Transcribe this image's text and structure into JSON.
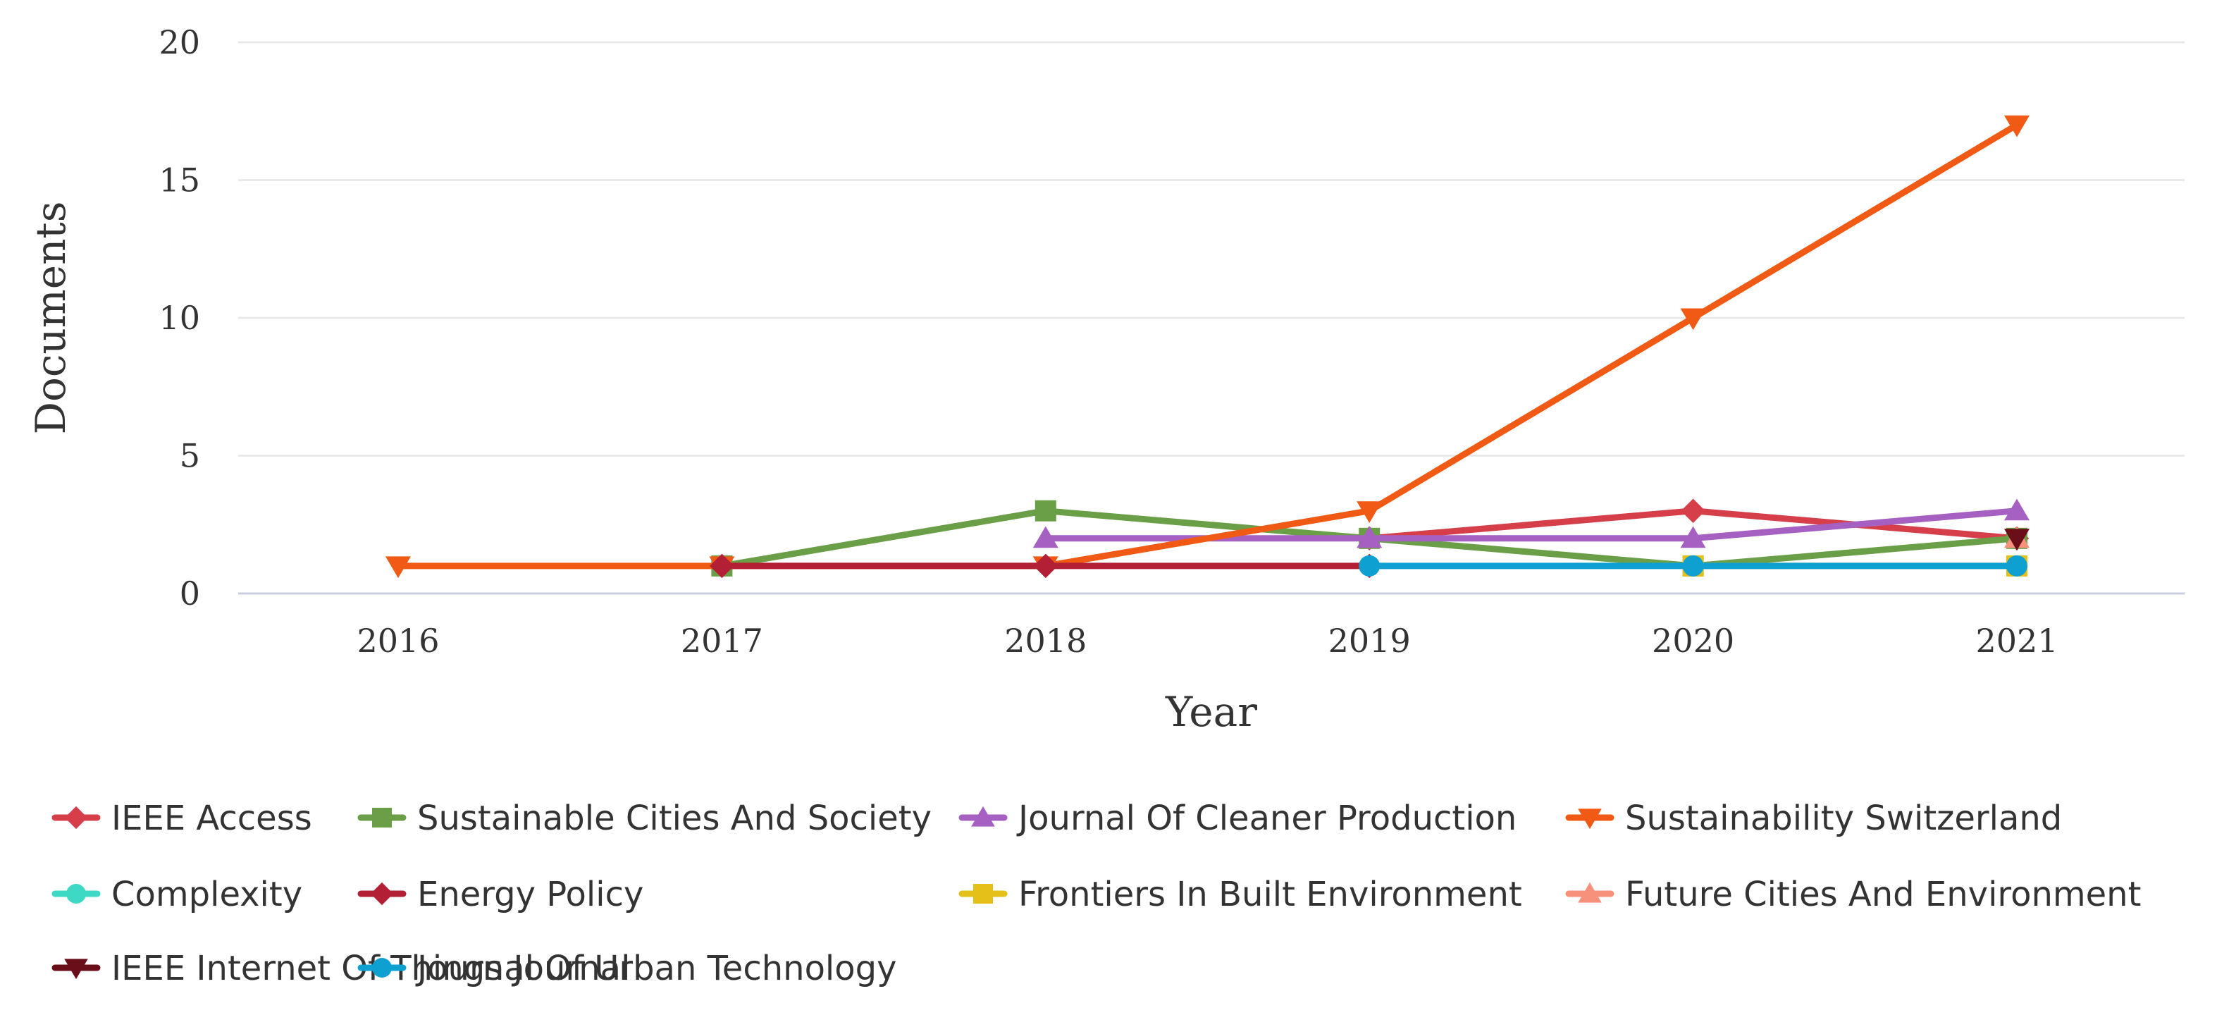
{
  "chart_data": {
    "type": "line",
    "title": "",
    "xlabel": "Year",
    "ylabel": "Documents",
    "x": [
      "2016",
      "2017",
      "2018",
      "2019",
      "2020",
      "2021"
    ],
    "ylim": [
      0,
      20
    ],
    "yticks": [
      "0",
      "5",
      "10",
      "15",
      "20"
    ],
    "grid": "horizontal",
    "legend_position": "bottom",
    "series": [
      {
        "name": "IEEE Access",
        "color": "#d63f4a",
        "marker": "diamond",
        "values": [
          null,
          null,
          null,
          2,
          3,
          2
        ]
      },
      {
        "name": "Sustainable Cities And Society",
        "color": "#6a9f48",
        "marker": "square",
        "values": [
          null,
          1,
          3,
          2,
          1,
          2
        ]
      },
      {
        "name": "Journal Of Cleaner Production",
        "color": "#a660c2",
        "marker": "triangle-up",
        "values": [
          null,
          null,
          2,
          2,
          2,
          3
        ]
      },
      {
        "name": "Sustainability Switzerland",
        "color": "#f05a14",
        "marker": "triangle-down",
        "values": [
          1,
          1,
          1,
          3,
          10,
          17
        ]
      },
      {
        "name": "Complexity",
        "color": "#3dd9c4",
        "marker": "circle",
        "values": [
          null,
          null,
          null,
          null,
          null,
          null
        ]
      },
      {
        "name": "Energy Policy",
        "color": "#b31f34",
        "marker": "diamond",
        "values": [
          null,
          1,
          1,
          1,
          null,
          null
        ]
      },
      {
        "name": "Frontiers In Built Environment",
        "color": "#e5c018",
        "marker": "square",
        "values": [
          null,
          null,
          null,
          null,
          1,
          1
        ]
      },
      {
        "name": "Future Cities And Environment",
        "color": "#f7917c",
        "marker": "triangle-up",
        "values": [
          null,
          null,
          null,
          null,
          null,
          2
        ]
      },
      {
        "name": "IEEE Internet Of Things Journal",
        "color": "#6a0f1a",
        "marker": "triangle-down",
        "values": [
          null,
          null,
          null,
          null,
          null,
          2
        ]
      },
      {
        "name": "Journal Of Urban Technology",
        "color": "#0fa0d2",
        "marker": "circle",
        "values": [
          null,
          null,
          null,
          1,
          1,
          1
        ]
      }
    ]
  }
}
